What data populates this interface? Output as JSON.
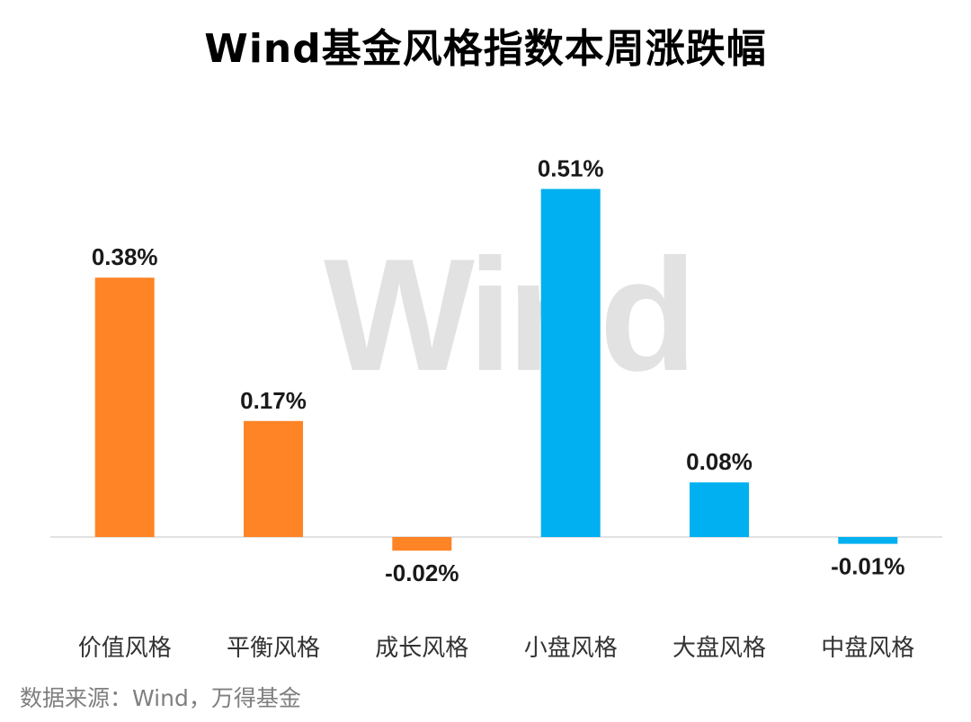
{
  "chart_data": {
    "type": "bar",
    "title": "Wind基金风格指数本周涨跌幅",
    "categories": [
      "价值风格",
      "平衡风格",
      "成长风格",
      "小盘风格",
      "大盘风格",
      "中盘风格"
    ],
    "values": [
      0.38,
      0.17,
      -0.02,
      0.51,
      0.08,
      -0.01
    ],
    "data_labels": [
      "0.38%",
      "0.17%",
      "-0.02%",
      "0.51%",
      "0.08%",
      "-0.01%"
    ],
    "bar_colors": [
      "#ff8426",
      "#ff8426",
      "#ff8426",
      "#00b0f0",
      "#00b0f0",
      "#00b0f0"
    ],
    "unit": "%",
    "ylim": [
      -0.03,
      0.56
    ],
    "grid": false,
    "legend": "none",
    "xlabel": "",
    "ylabel": ""
  },
  "watermark": "Wind",
  "source": "数据来源：Wind，万得基金",
  "colors": {
    "value_group": "#ff8426",
    "size_group": "#00b0f0",
    "axis": "#d9d9d9"
  }
}
